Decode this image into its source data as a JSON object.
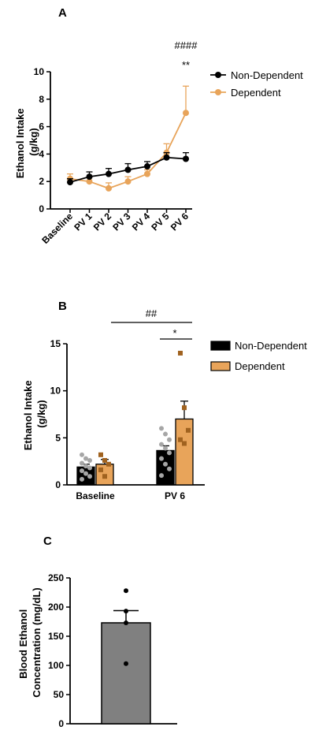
{
  "colors": {
    "non_dependent": "#000000",
    "dependent": "#E8A45A",
    "dependent_points": "#A0621F",
    "nd_points": "#A6A6A6",
    "bac_bar": "#808080"
  },
  "chart_data": [
    {
      "panel": "A",
      "type": "line",
      "ylabel": "Ethanol Intake\n(g/kg)",
      "ylim": [
        0,
        10
      ],
      "yticks": [
        0,
        2,
        4,
        6,
        8,
        10
      ],
      "categories": [
        "Baseline",
        "PV 1",
        "PV 2",
        "PV 3",
        "PV 4",
        "PV 5",
        "PV 6"
      ],
      "series": [
        {
          "name": "Non-Dependent",
          "values": [
            1.95,
            2.35,
            2.55,
            2.85,
            3.1,
            3.75,
            3.65
          ],
          "errors": [
            0.25,
            0.35,
            0.4,
            0.45,
            0.35,
            0.35,
            0.45
          ]
        },
        {
          "name": "Dependent",
          "values": [
            2.2,
            2.0,
            1.5,
            2.0,
            2.55,
            4.1,
            7.0
          ],
          "errors": [
            0.35,
            0.3,
            0.4,
            0.35,
            0.3,
            0.65,
            1.95
          ]
        }
      ],
      "annotations": [
        {
          "text": "####",
          "category": "PV 6",
          "level": "upper"
        },
        {
          "text": "**",
          "category": "PV 6",
          "level": "lower"
        }
      ],
      "legend": "top-right"
    },
    {
      "panel": "B",
      "type": "bar",
      "ylabel": "Ethanol Intake\n(g/kg)",
      "ylim": [
        0,
        15
      ],
      "yticks": [
        0,
        5,
        10,
        15
      ],
      "categories": [
        "Baseline",
        "PV 6"
      ],
      "series": [
        {
          "name": "Non-Dependent",
          "values": [
            1.9,
            3.65
          ],
          "errors": [
            0.3,
            0.5
          ],
          "points": [
            [
              3.2,
              2.8,
              2.6,
              2.3,
              2.0,
              1.8,
              1.5,
              1.2,
              0.9,
              0.6
            ],
            [
              6.0,
              5.4,
              4.8,
              4.3,
              3.9,
              3.4,
              2.8,
              2.2,
              1.7,
              1.0
            ]
          ]
        },
        {
          "name": "Dependent",
          "values": [
            2.2,
            7.0
          ],
          "errors": [
            0.5,
            1.9
          ],
          "points": [
            [
              3.2,
              2.6,
              2.2,
              1.6,
              0.9
            ],
            [
              14.0,
              8.2,
              5.8,
              4.8,
              4.4
            ]
          ]
        }
      ],
      "annotations": [
        {
          "text": "##",
          "span": [
            "Baseline",
            "PV 6"
          ]
        },
        {
          "text": "*",
          "span": [
            "PV 6 Non-Dependent",
            "PV 6 Dependent"
          ]
        }
      ],
      "legend": "top-right"
    },
    {
      "panel": "C",
      "type": "bar",
      "ylabel": "Blood Ethanol\nConcentration (mg/dL)",
      "ylim": [
        0,
        250
      ],
      "yticks": [
        0,
        50,
        100,
        150,
        200,
        250
      ],
      "categories": [
        ""
      ],
      "values": [
        173
      ],
      "errors": [
        21
      ],
      "points": [
        228,
        193,
        173,
        103
      ]
    }
  ]
}
